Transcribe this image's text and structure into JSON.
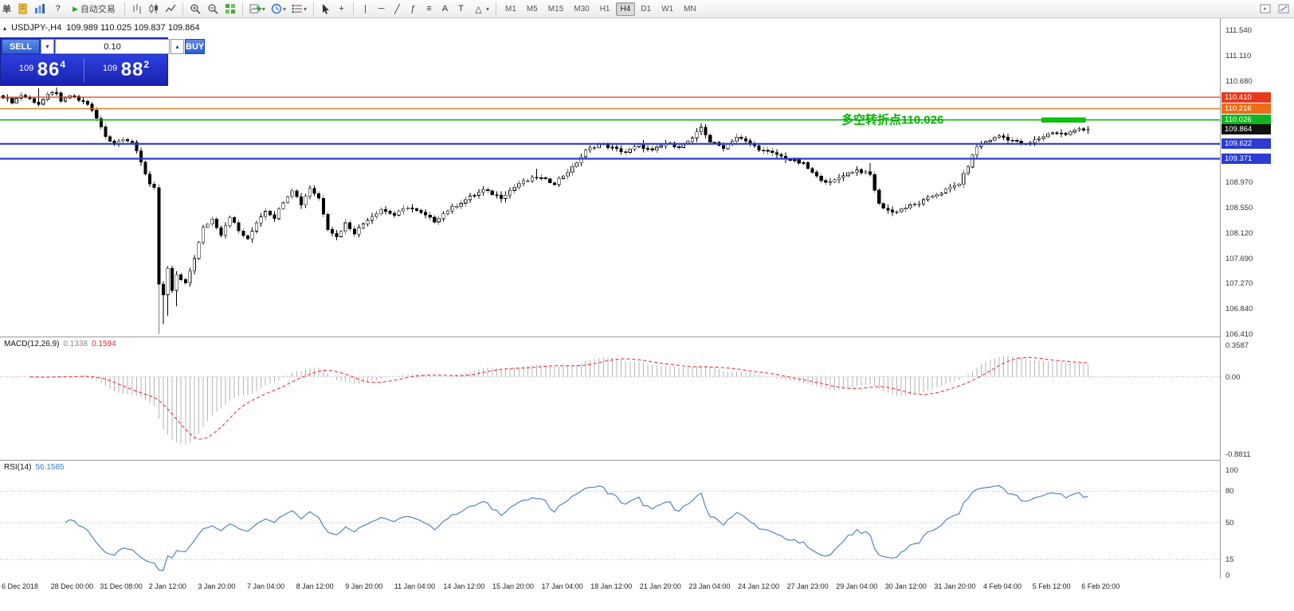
{
  "toolbar": {
    "order_button": "单",
    "autotrade_label": "自动交易",
    "timeframes": [
      "M1",
      "M5",
      "M15",
      "M30",
      "H1",
      "H4",
      "D1",
      "W1",
      "MN"
    ],
    "active_timeframe": "H4"
  },
  "icons": {
    "play": "▶",
    "down_arrow": "▾",
    "up_arrow": "▴",
    "collapse": "▴",
    "help": "?",
    "crosshair": "+",
    "vline": "|",
    "hline": "─",
    "tline": "╱",
    "fibo": "ƒ",
    "channel": "≡",
    "text_tool": "A",
    "label_tool": "T",
    "shapes": "△"
  },
  "chart": {
    "symbol_tf": "USDJPY-,H4",
    "ohlc": "109.989 110.025 109.837 109.864",
    "annotation": {
      "text": "多空转折点110.026",
      "color": "#00b400"
    }
  },
  "trade_panel": {
    "sell_label": "SELL",
    "buy_label": "BUY",
    "volume": "0.10",
    "sell_price": {
      "prefix": "109",
      "big": "86",
      "sup": "4"
    },
    "buy_price": {
      "prefix": "109",
      "big": "88",
      "sup": "2"
    }
  },
  "price_axis": {
    "labels": [
      {
        "text": "111.540",
        "price": 111.54
      },
      {
        "text": "111.110",
        "price": 111.11
      },
      {
        "text": "110.680",
        "price": 110.68
      },
      {
        "text": "108.970",
        "price": 108.97
      },
      {
        "text": "108.550",
        "price": 108.55
      },
      {
        "text": "108.120",
        "price": 108.12
      },
      {
        "text": "107.690",
        "price": 107.69
      },
      {
        "text": "107.270",
        "price": 107.27
      },
      {
        "text": "106.840",
        "price": 106.84
      },
      {
        "text": "106.410",
        "price": 106.41
      }
    ],
    "tags": [
      {
        "text": "110.410",
        "price": 110.41,
        "color": "#e8391d"
      },
      {
        "text": "110.216",
        "price": 110.216,
        "color": "#ee6d16"
      },
      {
        "text": "110.026",
        "price": 110.026,
        "color": "#0fb61f"
      },
      {
        "text": "109.864",
        "price": 109.864,
        "color": "#111111"
      },
      {
        "text": "109.622",
        "price": 109.622,
        "color": "#2b3bd4"
      },
      {
        "text": "109.371",
        "price": 109.371,
        "color": "#2b3bd4"
      }
    ]
  },
  "chart_data": {
    "type": "candlestick",
    "symbol": "USDJPY",
    "timeframe": "H4",
    "candle_count": 245,
    "price_range": [
      106.41,
      111.74
    ],
    "close_anchors": [
      [
        0,
        110.42
      ],
      [
        2,
        110.33
      ],
      [
        4,
        110.45
      ],
      [
        6,
        110.38
      ],
      [
        8,
        110.3
      ],
      [
        10,
        110.44
      ],
      [
        12,
        110.5
      ],
      [
        13,
        110.32
      ],
      [
        15,
        110.44
      ],
      [
        17,
        110.36
      ],
      [
        19,
        110.3
      ],
      [
        21,
        110.05
      ],
      [
        23,
        109.75
      ],
      [
        25,
        109.62
      ],
      [
        27,
        109.72
      ],
      [
        29,
        109.65
      ],
      [
        31,
        109.3
      ],
      [
        33,
        108.95
      ],
      [
        34,
        108.9
      ],
      [
        35,
        107.25
      ],
      [
        36,
        107.05
      ],
      [
        37,
        107.5
      ],
      [
        38,
        107.15
      ],
      [
        39,
        107.4
      ],
      [
        41,
        107.25
      ],
      [
        43,
        107.7
      ],
      [
        45,
        108.2
      ],
      [
        47,
        108.35
      ],
      [
        49,
        108.1
      ],
      [
        51,
        108.4
      ],
      [
        53,
        108.15
      ],
      [
        55,
        108.0
      ],
      [
        57,
        108.3
      ],
      [
        59,
        108.5
      ],
      [
        61,
        108.38
      ],
      [
        63,
        108.65
      ],
      [
        65,
        108.85
      ],
      [
        67,
        108.6
      ],
      [
        69,
        108.88
      ],
      [
        71,
        108.7
      ],
      [
        73,
        108.2
      ],
      [
        75,
        108.05
      ],
      [
        77,
        108.28
      ],
      [
        79,
        108.12
      ],
      [
        82,
        108.35
      ],
      [
        85,
        108.52
      ],
      [
        88,
        108.42
      ],
      [
        91,
        108.56
      ],
      [
        94,
        108.45
      ],
      [
        97,
        108.32
      ],
      [
        100,
        108.5
      ],
      [
        104,
        108.68
      ],
      [
        108,
        108.84
      ],
      [
        112,
        108.72
      ],
      [
        116,
        108.95
      ],
      [
        120,
        109.06
      ],
      [
        124,
        108.96
      ],
      [
        128,
        109.22
      ],
      [
        131,
        109.5
      ],
      [
        134,
        109.62
      ],
      [
        137,
        109.55
      ],
      [
        140,
        109.48
      ],
      [
        143,
        109.6
      ],
      [
        146,
        109.5
      ],
      [
        149,
        109.63
      ],
      [
        152,
        109.58
      ],
      [
        155,
        109.7
      ],
      [
        157,
        109.9
      ],
      [
        159,
        109.66
      ],
      [
        162,
        109.56
      ],
      [
        165,
        109.74
      ],
      [
        168,
        109.62
      ],
      [
        171,
        109.5
      ],
      [
        174,
        109.44
      ],
      [
        177,
        109.35
      ],
      [
        180,
        109.28
      ],
      [
        183,
        109.06
      ],
      [
        186,
        108.96
      ],
      [
        189,
        109.1
      ],
      [
        192,
        109.18
      ],
      [
        195,
        109.1
      ],
      [
        197,
        108.6
      ],
      [
        200,
        108.46
      ],
      [
        203,
        108.55
      ],
      [
        206,
        108.62
      ],
      [
        209,
        108.74
      ],
      [
        212,
        108.84
      ],
      [
        215,
        108.95
      ],
      [
        217,
        109.25
      ],
      [
        219,
        109.58
      ],
      [
        221,
        109.66
      ],
      [
        224,
        109.76
      ],
      [
        227,
        109.68
      ],
      [
        230,
        109.6
      ],
      [
        233,
        109.72
      ],
      [
        236,
        109.82
      ],
      [
        239,
        109.78
      ],
      [
        242,
        109.88
      ],
      [
        244,
        109.864
      ]
    ],
    "wick_lows": [
      [
        35,
        106.41
      ],
      [
        36,
        106.58
      ],
      [
        37,
        106.72
      ],
      [
        39,
        106.88
      ]
    ],
    "wick_highs": [
      [
        8,
        110.56
      ],
      [
        12,
        110.57
      ],
      [
        120,
        109.2
      ],
      [
        157,
        109.97
      ],
      [
        195,
        109.3
      ]
    ],
    "levels": [
      {
        "price": 110.41,
        "color": "#e8391d",
        "width": 1.2
      },
      {
        "price": 110.216,
        "color": "#ee6d16",
        "width": 1.2
      },
      {
        "price": 110.026,
        "color": "#0fb61f",
        "width": 1.6
      },
      {
        "price": 109.622,
        "color": "#2b3bd4",
        "width": 2.2
      },
      {
        "price": 109.371,
        "color": "#2b3bd4",
        "width": 2.2
      }
    ],
    "highlight_rect": {
      "from_index": 234,
      "to_index": 243,
      "price_top": 110.06,
      "price_bottom": 109.99,
      "color": "#00cc00"
    }
  },
  "macd": {
    "label": "MACD(12,26,9)",
    "value_main": "0.1338",
    "value_signal": "0.1594",
    "params": {
      "fast": 12,
      "slow": 26,
      "signal": 9
    },
    "axis": [
      {
        "text": "0.3587",
        "value": 0.3587
      },
      {
        "text": "0.00",
        "value": 0
      },
      {
        "text": "-0.8811",
        "value": -0.8811
      }
    ]
  },
  "rsi": {
    "label": "RSI(14)",
    "value": "56.1585",
    "period": 14,
    "levels": [
      80,
      50,
      15
    ],
    "axis": [
      {
        "text": "100",
        "value": 100
      },
      {
        "text": "80",
        "value": 80
      },
      {
        "text": "50",
        "value": 50
      },
      {
        "text": "15",
        "value": 15
      },
      {
        "text": "0",
        "value": 0
      }
    ]
  },
  "time_axis": {
    "labels": [
      "6 Dec 2018",
      "28 Dec 00:00",
      "31 Dec 08:00",
      "2 Jan 12:00",
      "3 Jan 20:00",
      "7 Jan 04:00",
      "8 Jan 12:00",
      "9 Jan 20:00",
      "11 Jan 04:00",
      "14 Jan 12:00",
      "15 Jan 20:00",
      "17 Jan 04:00",
      "18 Jan 12:00",
      "21 Jan 20:00",
      "23 Jan 04:00",
      "24 Jan 12:00",
      "27 Jan 23:00",
      "29 Jan 04:00",
      "30 Jan 12:00",
      "31 Jan 20:00",
      "4 Feb 04:00",
      "5 Feb 12:00",
      "6 Feb 20:00"
    ]
  }
}
